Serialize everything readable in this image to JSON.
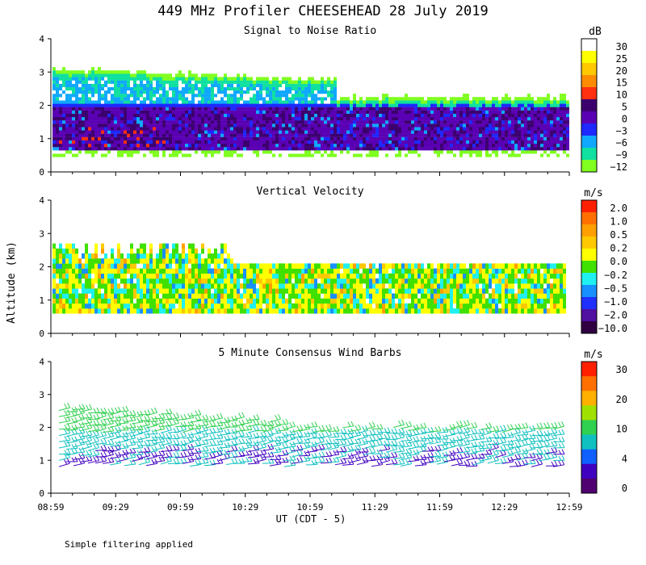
{
  "title": "449 MHz Profiler CHEESEHEAD 28 July 2019",
  "footer_note": "Simple filtering applied",
  "shared_y_label": "Altitude (km)",
  "x_label": "UT  (CDT - 5)",
  "chart_data": [
    {
      "type": "heatmap",
      "title": "Signal to Noise Ratio",
      "units": "dB",
      "ylim": [
        0,
        4
      ],
      "y_ticks": [
        "0",
        "1",
        "2",
        "3",
        "4"
      ],
      "x_ticks": [
        "08:59",
        "09:29",
        "09:59",
        "10:29",
        "10:59",
        "11:29",
        "11:59",
        "12:29",
        "12:59"
      ],
      "colorbar": {
        "labels": [
          "30",
          "25",
          "20",
          "15",
          "10",
          "5",
          "0",
          "−3",
          "−6",
          "−9",
          "−12"
        ],
        "colors": [
          "#ffffff",
          "#ffff00",
          "#ffc800",
          "#ff8c00",
          "#ff3010",
          "#3c006e",
          "#5a00b4",
          "#1e28ff",
          "#10a8ff",
          "#10e0a0",
          "#80ff20"
        ]
      }
    },
    {
      "type": "heatmap",
      "title": "Vertical Velocity",
      "units": "m/s",
      "ylim": [
        0,
        4
      ],
      "y_ticks": [
        "0",
        "1",
        "2",
        "3",
        "4"
      ],
      "x_ticks": [
        "08:59",
        "09:29",
        "09:59",
        "10:29",
        "10:59",
        "11:29",
        "11:59",
        "12:29",
        "12:59"
      ],
      "colorbar": {
        "labels": [
          "2.0",
          "1.0",
          "0.5",
          "0.2",
          "0.0",
          "−0.2",
          "−0.5",
          "−1.0",
          "−2.0",
          "−10.0"
        ],
        "colors": [
          "#ff2000",
          "#ff7000",
          "#ffa000",
          "#ffc800",
          "#ffff00",
          "#40e000",
          "#20f0f0",
          "#1890ff",
          "#2030ff",
          "#5010a0",
          "#300040"
        ]
      }
    },
    {
      "type": "wind_barbs",
      "title": "5 Minute Consensus Wind Barbs",
      "units": "m/s",
      "ylim": [
        0,
        4
      ],
      "y_ticks": [
        "0",
        "1",
        "2",
        "3",
        "4"
      ],
      "x_ticks": [
        "08:59",
        "09:29",
        "09:59",
        "10:29",
        "10:59",
        "11:29",
        "11:59",
        "12:29",
        "12:59"
      ],
      "colorbar": {
        "labels": [
          "30",
          "20",
          "10",
          "4",
          "0"
        ],
        "colors": [
          "#ff2000",
          "#ff7000",
          "#ffb000",
          "#a0e000",
          "#30d050",
          "#10c0c0",
          "#1060ff",
          "#4000c0",
          "#500070"
        ]
      }
    }
  ]
}
